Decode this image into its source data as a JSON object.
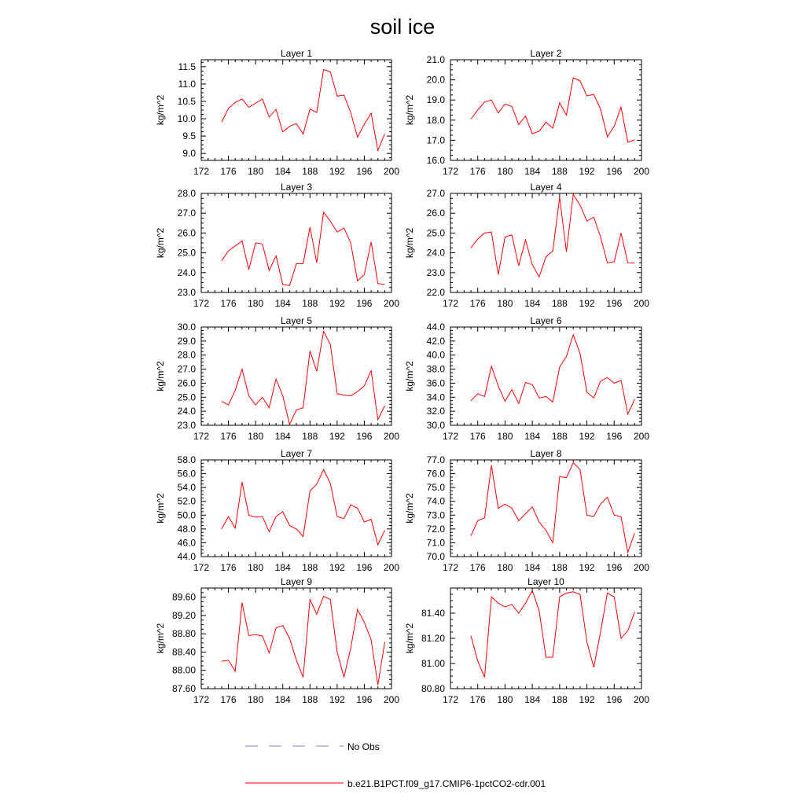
{
  "title": "soil ice",
  "legend": {
    "placement": "bottom",
    "entries": [
      {
        "label": "No Obs",
        "color": "#7f7fc8",
        "style": "dashed"
      },
      {
        "label": "b.e21.B1PCT.f09_g17.CMIP6-1pctCO2-cdr.001",
        "color": "#ff0000",
        "style": "solid"
      }
    ]
  },
  "chart_data": [
    {
      "type": "line",
      "title": "Layer 1",
      "ylabel": "kg/m^2",
      "xlim": [
        172,
        200
      ],
      "ylim": [
        8.8,
        11.7
      ],
      "xticks": [
        "172",
        "176",
        "180",
        "184",
        "188",
        "192",
        "196",
        "200"
      ],
      "yticks": [
        "9.0",
        "9.5",
        "10.0",
        "10.5",
        "11.0",
        "11.5"
      ],
      "ytick_values": [
        9.0,
        9.5,
        10.0,
        10.5,
        11.0,
        11.5
      ],
      "x": [
        175,
        176,
        177,
        178,
        179,
        180,
        181,
        182,
        183,
        184,
        185,
        186,
        187,
        188,
        189,
        190,
        191,
        192,
        193,
        194,
        195,
        196,
        197,
        198,
        199
      ],
      "series": [
        {
          "name": "b.e21.B1PCT.f09_g17.CMIP6-1pctCO2-cdr.001",
          "color": "#ff0000",
          "values": [
            9.9,
            10.3,
            10.47,
            10.57,
            10.33,
            10.45,
            10.57,
            10.05,
            10.27,
            9.62,
            9.78,
            9.86,
            9.56,
            10.28,
            10.18,
            11.42,
            11.35,
            10.65,
            10.68,
            10.18,
            9.47,
            9.84,
            10.16,
            9.08,
            9.57
          ]
        }
      ]
    },
    {
      "type": "line",
      "title": "Layer 2",
      "ylabel": "kg/m^2",
      "xlim": [
        172,
        200
      ],
      "ylim": [
        16.0,
        21.0
      ],
      "xticks": [
        "172",
        "176",
        "180",
        "184",
        "188",
        "192",
        "196",
        "200"
      ],
      "yticks": [
        "16.0",
        "17.0",
        "18.0",
        "19.0",
        "20.0",
        "21.0"
      ],
      "ytick_values": [
        16,
        17,
        18,
        19,
        20,
        21
      ],
      "x": [
        175,
        176,
        177,
        178,
        179,
        180,
        181,
        182,
        183,
        184,
        185,
        186,
        187,
        188,
        189,
        190,
        191,
        192,
        193,
        194,
        195,
        196,
        197,
        198,
        199
      ],
      "series": [
        {
          "name": "b.e21.B1PCT.f09_g17.CMIP6-1pctCO2-cdr.001",
          "color": "#ff0000",
          "values": [
            18.05,
            18.5,
            18.9,
            19.0,
            18.35,
            18.8,
            18.68,
            17.78,
            18.2,
            17.32,
            17.45,
            17.9,
            17.6,
            18.85,
            18.25,
            20.1,
            19.95,
            19.2,
            19.28,
            18.55,
            17.17,
            17.7,
            18.65,
            16.9,
            17.02
          ]
        }
      ]
    },
    {
      "type": "line",
      "title": "Layer 3",
      "ylabel": "kg/m^2",
      "xlim": [
        172,
        200
      ],
      "ylim": [
        23.0,
        28.0
      ],
      "xticks": [
        "172",
        "176",
        "180",
        "184",
        "188",
        "192",
        "196",
        "200"
      ],
      "yticks": [
        "23.0",
        "24.0",
        "25.0",
        "26.0",
        "27.0",
        "28.0"
      ],
      "ytick_values": [
        23,
        24,
        25,
        26,
        27,
        28
      ],
      "x": [
        175,
        176,
        177,
        178,
        179,
        180,
        181,
        182,
        183,
        184,
        185,
        186,
        187,
        188,
        189,
        190,
        191,
        192,
        193,
        194,
        195,
        196,
        197,
        198,
        199
      ],
      "series": [
        {
          "name": "b.e21.B1PCT.f09_g17.CMIP6-1pctCO2-cdr.001",
          "color": "#ff0000",
          "values": [
            24.6,
            25.1,
            25.35,
            25.6,
            24.15,
            25.5,
            25.45,
            24.1,
            24.85,
            23.4,
            23.35,
            24.45,
            24.45,
            26.3,
            24.5,
            27.05,
            26.6,
            26.05,
            26.25,
            25.5,
            23.58,
            23.9,
            25.55,
            23.45,
            23.4
          ]
        }
      ]
    },
    {
      "type": "line",
      "title": "Layer 4",
      "ylabel": "kg/m^2",
      "xlim": [
        172,
        200
      ],
      "ylim": [
        22.0,
        27.0
      ],
      "xticks": [
        "172",
        "176",
        "180",
        "184",
        "188",
        "192",
        "196",
        "200"
      ],
      "yticks": [
        "22.0",
        "23.0",
        "24.0",
        "25.0",
        "26.0",
        "27.0"
      ],
      "ytick_values": [
        22,
        23,
        24,
        25,
        26,
        27
      ],
      "x": [
        175,
        176,
        177,
        178,
        179,
        180,
        181,
        182,
        183,
        184,
        185,
        186,
        187,
        188,
        189,
        190,
        191,
        192,
        193,
        194,
        195,
        196,
        197,
        198,
        199
      ],
      "series": [
        {
          "name": "b.e21.B1PCT.f09_g17.CMIP6-1pctCO2-cdr.001",
          "color": "#ff0000",
          "values": [
            24.25,
            24.7,
            25.0,
            25.05,
            22.9,
            24.8,
            24.9,
            23.35,
            24.65,
            23.4,
            22.78,
            23.8,
            24.1,
            26.8,
            24.05,
            26.95,
            26.4,
            25.6,
            25.8,
            24.8,
            23.5,
            23.55,
            25.0,
            23.5,
            23.48
          ]
        }
      ]
    },
    {
      "type": "line",
      "title": "Layer 5",
      "ylabel": "kg/m^2",
      "xlim": [
        172,
        200
      ],
      "ylim": [
        23.0,
        30.0
      ],
      "xticks": [
        "172",
        "176",
        "180",
        "184",
        "188",
        "192",
        "196",
        "200"
      ],
      "yticks": [
        "23.0",
        "24.0",
        "25.0",
        "26.0",
        "27.0",
        "28.0",
        "29.0",
        "30.0"
      ],
      "ytick_values": [
        23,
        24,
        25,
        26,
        27,
        28,
        29,
        30
      ],
      "x": [
        175,
        176,
        177,
        178,
        179,
        180,
        181,
        182,
        183,
        184,
        185,
        186,
        187,
        188,
        189,
        190,
        191,
        192,
        193,
        194,
        195,
        196,
        197,
        198,
        199
      ],
      "series": [
        {
          "name": "b.e21.B1PCT.f09_g17.CMIP6-1pctCO2-cdr.001",
          "color": "#ff0000",
          "values": [
            24.7,
            24.45,
            25.5,
            27.0,
            25.1,
            24.45,
            25.0,
            24.25,
            26.3,
            25.1,
            23.05,
            24.1,
            24.25,
            28.3,
            26.85,
            29.7,
            28.75,
            25.25,
            25.15,
            25.1,
            25.4,
            25.8,
            26.9,
            23.4,
            24.4
          ]
        }
      ]
    },
    {
      "type": "line",
      "title": "Layer 6",
      "ylabel": "kg/m^2",
      "xlim": [
        172,
        200
      ],
      "ylim": [
        30.0,
        44.0
      ],
      "xticks": [
        "172",
        "176",
        "180",
        "184",
        "188",
        "192",
        "196",
        "200"
      ],
      "yticks": [
        "30.0",
        "32.0",
        "34.0",
        "36.0",
        "38.0",
        "40.0",
        "42.0",
        "44.0"
      ],
      "ytick_values": [
        30,
        32,
        34,
        36,
        38,
        40,
        42,
        44
      ],
      "x": [
        175,
        176,
        177,
        178,
        179,
        180,
        181,
        182,
        183,
        184,
        185,
        186,
        187,
        188,
        189,
        190,
        191,
        192,
        193,
        194,
        195,
        196,
        197,
        198,
        199
      ],
      "series": [
        {
          "name": "b.e21.B1PCT.f09_g17.CMIP6-1pctCO2-cdr.001",
          "color": "#ff0000",
          "values": [
            33.5,
            34.5,
            34.1,
            38.4,
            35.6,
            33.4,
            35.1,
            33.1,
            36.1,
            35.8,
            33.9,
            34.1,
            33.3,
            38.3,
            39.8,
            42.9,
            40.2,
            34.7,
            33.9,
            36.3,
            36.8,
            36.0,
            36.4,
            31.6,
            33.7
          ]
        }
      ]
    },
    {
      "type": "line",
      "title": "Layer 7",
      "ylabel": "kg/m^2",
      "xlim": [
        172,
        200
      ],
      "ylim": [
        44.0,
        58.0
      ],
      "xticks": [
        "172",
        "176",
        "180",
        "184",
        "188",
        "192",
        "196",
        "200"
      ],
      "yticks": [
        "44.0",
        "46.0",
        "48.0",
        "50.0",
        "52.0",
        "54.0",
        "56.0",
        "58.0"
      ],
      "ytick_values": [
        44,
        46,
        48,
        50,
        52,
        54,
        56,
        58
      ],
      "x": [
        175,
        176,
        177,
        178,
        179,
        180,
        181,
        182,
        183,
        184,
        185,
        186,
        187,
        188,
        189,
        190,
        191,
        192,
        193,
        194,
        195,
        196,
        197,
        198,
        199
      ],
      "series": [
        {
          "name": "b.e21.B1PCT.f09_g17.CMIP6-1pctCO2-cdr.001",
          "color": "#ff0000",
          "values": [
            48.0,
            49.8,
            48.1,
            54.8,
            50.0,
            49.7,
            49.8,
            47.6,
            49.8,
            50.5,
            48.5,
            48.0,
            46.9,
            53.5,
            54.5,
            56.6,
            54.6,
            49.8,
            49.5,
            51.5,
            51.0,
            49.0,
            49.4,
            45.7,
            47.8
          ]
        }
      ]
    },
    {
      "type": "line",
      "title": "Layer 8",
      "ylabel": "kg/m^2",
      "xlim": [
        172,
        200
      ],
      "ylim": [
        70.0,
        77.0
      ],
      "xticks": [
        "172",
        "176",
        "180",
        "184",
        "188",
        "192",
        "196",
        "200"
      ],
      "yticks": [
        "70.0",
        "71.0",
        "72.0",
        "73.0",
        "74.0",
        "75.0",
        "76.0",
        "77.0"
      ],
      "ytick_values": [
        70,
        71,
        72,
        73,
        74,
        75,
        76,
        77
      ],
      "x": [
        175,
        176,
        177,
        178,
        179,
        180,
        181,
        182,
        183,
        184,
        185,
        186,
        187,
        188,
        189,
        190,
        191,
        192,
        193,
        194,
        195,
        196,
        197,
        198,
        199
      ],
      "series": [
        {
          "name": "b.e21.B1PCT.f09_g17.CMIP6-1pctCO2-cdr.001",
          "color": "#ff0000",
          "values": [
            71.5,
            72.6,
            72.8,
            76.6,
            73.5,
            73.8,
            73.5,
            72.6,
            73.1,
            73.6,
            72.5,
            71.9,
            71.0,
            75.8,
            75.7,
            76.8,
            76.3,
            73.0,
            72.9,
            73.8,
            74.3,
            73.0,
            72.9,
            70.3,
            71.7
          ]
        }
      ]
    },
    {
      "type": "line",
      "title": "Layer 9",
      "ylabel": "kg/m^2",
      "xlim": [
        172,
        200
      ],
      "ylim": [
        87.6,
        89.8
      ],
      "xticks": [
        "172",
        "176",
        "180",
        "184",
        "188",
        "192",
        "196",
        "200"
      ],
      "yticks": [
        "87.60",
        "88.00",
        "88.40",
        "88.80",
        "89.20",
        "89.60"
      ],
      "ytick_values": [
        87.6,
        88.0,
        88.4,
        88.8,
        89.2,
        89.6
      ],
      "x": [
        175,
        176,
        177,
        178,
        179,
        180,
        181,
        182,
        183,
        184,
        185,
        186,
        187,
        188,
        189,
        190,
        191,
        192,
        193,
        194,
        195,
        196,
        197,
        198,
        199
      ],
      "series": [
        {
          "name": "b.e21.B1PCT.f09_g17.CMIP6-1pctCO2-cdr.001",
          "color": "#ff0000",
          "values": [
            88.2,
            88.22,
            87.98,
            89.48,
            88.76,
            88.78,
            88.75,
            88.38,
            88.93,
            88.98,
            88.7,
            88.22,
            87.85,
            89.55,
            89.23,
            89.62,
            89.55,
            88.4,
            87.85,
            88.48,
            89.33,
            89.05,
            88.67,
            87.68,
            88.62
          ]
        }
      ]
    },
    {
      "type": "line",
      "title": "Layer 10",
      "ylabel": "kg/m^2",
      "xlim": [
        172,
        200
      ],
      "ylim": [
        80.8,
        81.6
      ],
      "xticks": [
        "172",
        "176",
        "180",
        "184",
        "188",
        "192",
        "196",
        "200"
      ],
      "yticks": [
        "80.80",
        "81.00",
        "81.20",
        "81.40"
      ],
      "ytick_values": [
        80.8,
        81.0,
        81.2,
        81.4
      ],
      "x": [
        175,
        176,
        177,
        178,
        179,
        180,
        181,
        182,
        183,
        184,
        185,
        186,
        187,
        188,
        189,
        190,
        191,
        192,
        193,
        194,
        195,
        196,
        197,
        198,
        199
      ],
      "series": [
        {
          "name": "b.e21.B1PCT.f09_g17.CMIP6-1pctCO2-cdr.001",
          "color": "#ff0000",
          "values": [
            81.22,
            81.02,
            80.89,
            81.53,
            81.48,
            81.45,
            81.47,
            81.4,
            81.48,
            81.58,
            81.42,
            81.05,
            81.05,
            81.53,
            81.56,
            81.57,
            81.55,
            81.17,
            80.97,
            81.25,
            81.56,
            81.53,
            81.2,
            81.26,
            81.41
          ]
        }
      ]
    }
  ]
}
